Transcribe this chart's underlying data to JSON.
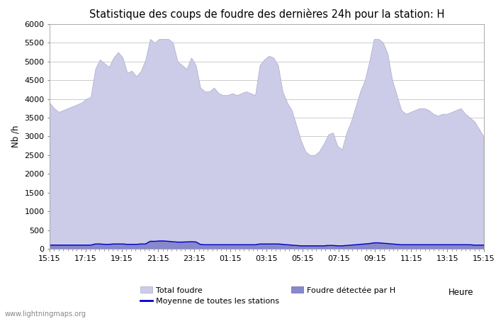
{
  "title": "Statistique des coups de foudre des dernières 24h pour la station: H",
  "xlabel": "Heure",
  "ylabel": "Nb /h",
  "ylim": [
    0,
    6000
  ],
  "yticks": [
    0,
    500,
    1000,
    1500,
    2000,
    2500,
    3000,
    3500,
    4000,
    4500,
    5000,
    5500,
    6000
  ],
  "xtick_labels": [
    "15:15",
    "17:15",
    "19:15",
    "21:15",
    "23:15",
    "01:15",
    "03:15",
    "05:15",
    "07:15",
    "09:15",
    "11:15",
    "13:15",
    "15:15"
  ],
  "background_color": "#ffffff",
  "plot_bg_color": "#ffffff",
  "grid_color": "#cccccc",
  "watermark": "www.lightningmaps.org",
  "total_foudre_color": "#cccce8",
  "total_foudre_edge_color": "#aaaacc",
  "foudre_h_color": "#8888cc",
  "foudre_h_edge_color": "#6666aa",
  "moyenne_color": "#0000cc",
  "legend_total_label": "Total foudre",
  "legend_moyenne_label": "Moyenne de toutes les stations",
  "legend_foudre_h_label": "Foudre détectée par H",
  "total_foudre_y": [
    3900,
    3750,
    3650,
    3700,
    3750,
    3800,
    3850,
    3900,
    4000,
    4050,
    4800,
    5050,
    4950,
    4850,
    5100,
    5250,
    5100,
    4700,
    4750,
    4600,
    4750,
    5050,
    5600,
    5500,
    5600,
    5600,
    5600,
    5500,
    5000,
    4900,
    4800,
    5100,
    4900,
    4300,
    4200,
    4200,
    4300,
    4150,
    4100,
    4100,
    4150,
    4100,
    4150,
    4200,
    4150,
    4100,
    4900,
    5050,
    5150,
    5100,
    4900,
    4200,
    3900,
    3700,
    3300,
    2900,
    2600,
    2500,
    2500,
    2600,
    2800,
    3050,
    3100,
    2750,
    2650,
    3100,
    3400,
    3800,
    4200,
    4500,
    5000,
    5600,
    5600,
    5500,
    5200,
    4500,
    4100,
    3700,
    3600,
    3650,
    3700,
    3750,
    3750,
    3700,
    3600,
    3550,
    3600,
    3600,
    3650,
    3700,
    3750,
    3600,
    3500,
    3400,
    3200,
    3000
  ],
  "foudre_h_y": [
    100,
    100,
    100,
    100,
    100,
    100,
    100,
    100,
    100,
    100,
    130,
    130,
    120,
    120,
    130,
    130,
    130,
    120,
    120,
    120,
    130,
    130,
    200,
    200,
    210,
    210,
    200,
    190,
    180,
    180,
    185,
    190,
    185,
    120,
    110,
    110,
    110,
    110,
    110,
    110,
    110,
    110,
    110,
    110,
    110,
    110,
    130,
    130,
    130,
    130,
    130,
    120,
    110,
    100,
    90,
    80,
    80,
    80,
    80,
    80,
    80,
    90,
    90,
    80,
    80,
    90,
    100,
    110,
    120,
    130,
    140,
    160,
    160,
    150,
    140,
    130,
    120,
    110,
    110,
    110,
    110,
    110,
    110,
    110,
    110,
    110,
    110,
    110,
    110,
    110,
    110,
    110,
    110,
    100,
    100,
    100
  ],
  "moyenne_y": [
    100,
    100,
    100,
    100,
    100,
    100,
    100,
    100,
    100,
    100,
    130,
    130,
    120,
    120,
    130,
    130,
    130,
    120,
    120,
    120,
    130,
    130,
    200,
    200,
    210,
    210,
    200,
    190,
    180,
    180,
    185,
    190,
    185,
    120,
    110,
    110,
    110,
    110,
    110,
    110,
    110,
    110,
    110,
    110,
    110,
    110,
    130,
    130,
    130,
    130,
    130,
    120,
    110,
    100,
    90,
    80,
    80,
    80,
    80,
    80,
    80,
    90,
    90,
    80,
    80,
    90,
    100,
    110,
    120,
    130,
    140,
    160,
    160,
    150,
    140,
    130,
    120,
    110,
    110,
    110,
    110,
    110,
    110,
    110,
    110,
    110,
    110,
    110,
    110,
    110,
    110,
    110,
    110,
    100,
    100,
    100
  ],
  "title_fontsize": 10.5,
  "axis_fontsize": 8.5,
  "tick_fontsize": 8
}
